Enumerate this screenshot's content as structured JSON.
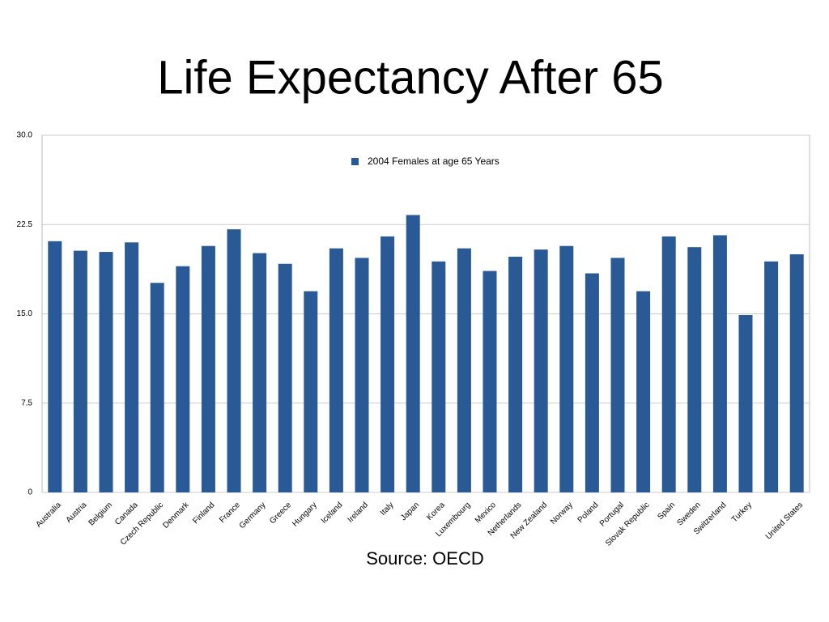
{
  "chart_data": {
    "type": "bar",
    "title": "Life Expectancy After 65",
    "source": "Source: OECD",
    "categories": [
      "Australia",
      "Austria",
      "Belgium",
      "Canada",
      "Czech Republic",
      "Denmark",
      "Finland",
      "France",
      "Germany",
      "Greece",
      "Hungary",
      "Iceland",
      "Ireland",
      "Italy",
      "Japan",
      "Korea",
      "Luxembourg",
      "Mexico",
      "Netherlands",
      "New Zealand",
      "Norway",
      "Poland",
      "Portugal",
      "Slovak Republic",
      "Spain",
      "Sweden",
      "Switzerland",
      "Turkey",
      null,
      "United States"
    ],
    "series": [
      {
        "name": "2004 Females at age 65 Years",
        "color": "#2a5a96",
        "values": [
          21.1,
          20.3,
          20.2,
          21.0,
          17.6,
          19.0,
          20.7,
          22.1,
          20.1,
          19.2,
          16.9,
          20.5,
          19.7,
          21.5,
          23.3,
          19.4,
          20.5,
          18.6,
          19.8,
          20.4,
          20.7,
          18.4,
          19.7,
          16.9,
          21.5,
          20.6,
          21.6,
          14.9,
          19.4,
          20.0
        ]
      }
    ],
    "ylim": [
      0,
      30
    ],
    "yticks": [
      0,
      7.5,
      {
        "value": 15,
        "label": "15.0"
      },
      {
        "value": 22.5,
        "label": "22.5"
      },
      {
        "value": 30,
        "label": "30.0"
      }
    ],
    "grid": true,
    "legend": "top"
  }
}
